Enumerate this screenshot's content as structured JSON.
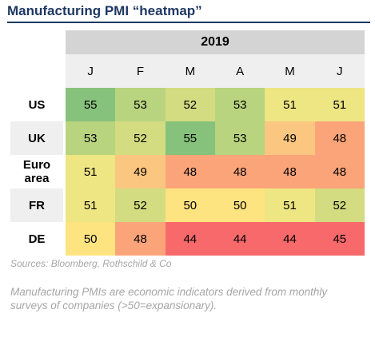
{
  "title": "Manufacturing PMI “heatmap”",
  "chart_data": {
    "type": "heatmap",
    "title": "Manufacturing PMI “heatmap”",
    "year": "2019",
    "columns": [
      "J",
      "F",
      "M",
      "A",
      "M",
      "J"
    ],
    "rows": [
      {
        "label": "US",
        "values": [
          55,
          53,
          52,
          53,
          51,
          51
        ]
      },
      {
        "label": "UK",
        "values": [
          53,
          52,
          55,
          53,
          49,
          48
        ]
      },
      {
        "label": "Euro area",
        "values": [
          51,
          49,
          48,
          48,
          48,
          48
        ]
      },
      {
        "label": "FR",
        "values": [
          51,
          52,
          50,
          50,
          51,
          52
        ]
      },
      {
        "label": "DE",
        "values": [
          50,
          48,
          44,
          44,
          44,
          45
        ]
      }
    ],
    "color_scale": {
      "44": "#f8696b",
      "45": "#f8696b",
      "48": "#fba47a",
      "49": "#fbc680",
      "50": "#fee480",
      "51": "#eee583",
      "52": "#d3dc80",
      "53": "#b9d47e",
      "55": "#86c27b"
    }
  },
  "source": "Sources: Bloomberg, Rothschild & Co",
  "note": "Manufacturing PMIs are economic indicators derived from monthly surveys of companies (>50=expansionary)."
}
